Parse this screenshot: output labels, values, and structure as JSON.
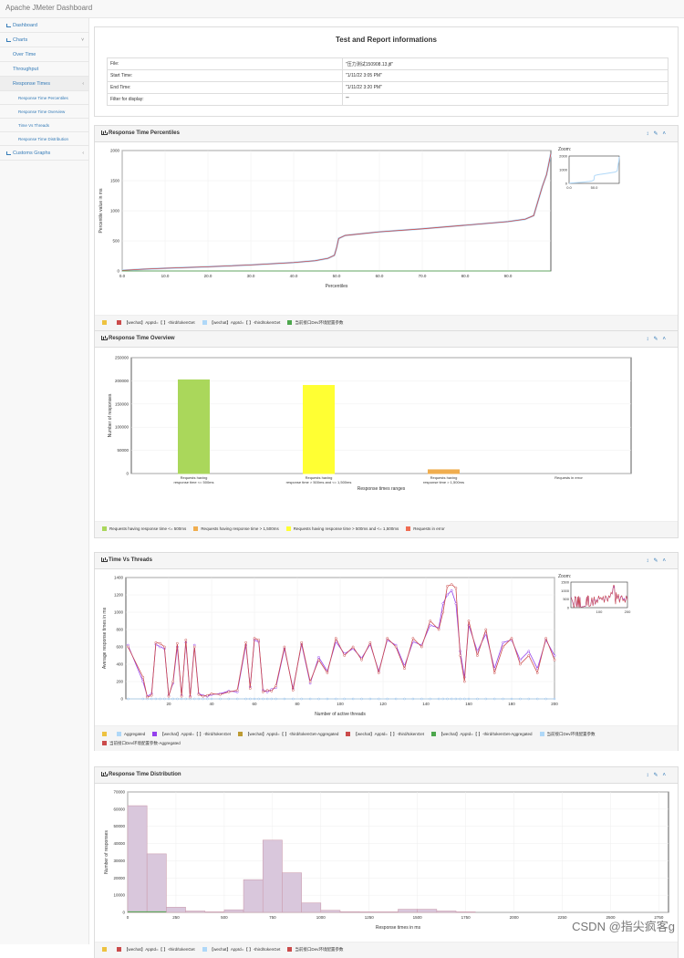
{
  "app": {
    "title": "Apache JMeter Dashboard"
  },
  "sidebar": {
    "items": [
      {
        "label": "Dashboard",
        "level": 0,
        "icon": "dashboard-icon"
      },
      {
        "label": "Charts",
        "level": 0,
        "icon": "chart-icon",
        "arrow": "˅"
      },
      {
        "label": "Over Time",
        "level": 1
      },
      {
        "label": "Throughput",
        "level": 1
      },
      {
        "label": "Response Times",
        "level": 1,
        "arrow": "‹",
        "active": true
      },
      {
        "label": "Response Time Percentiles",
        "level": 2
      },
      {
        "label": "Response Time Overview",
        "level": 2
      },
      {
        "label": "Time Vs Threads",
        "level": 2
      },
      {
        "label": "Response Time Distribution",
        "level": 2
      },
      {
        "label": "Customs Graphs",
        "level": 0,
        "icon": "chart-icon",
        "arrow": "‹"
      }
    ]
  },
  "info": {
    "title": "Test and Report informations",
    "rows": [
      {
        "k": "File:",
        "v": "\"压力测试150908.13.jtl\""
      },
      {
        "k": "Start Time:",
        "v": "\"1/11/22 3:05 PM\""
      },
      {
        "k": "End Time:",
        "v": "\"1/11/22 3:20 PM\""
      },
      {
        "k": "Filter for display:",
        "v": "\"\""
      }
    ]
  },
  "panels": {
    "percentiles": {
      "title": "Response Time Percentiles",
      "zoom": "Zoom:"
    },
    "overview": {
      "title": "Response Time Overview"
    },
    "threads": {
      "title": "Time Vs Threads",
      "zoom": "Zoom:"
    },
    "distribution": {
      "title": "Response Time Distribution"
    }
  },
  "colors": {
    "series_red": "#cb4b4b",
    "series_blue": "#afd8f8",
    "series_green": "#4da74d",
    "series_orange": "#edc240",
    "series_purple": "#9440ed",
    "panel_header": "#f5f5f5"
  },
  "chart_data": [
    {
      "type": "line",
      "xlabel": "Percentiles",
      "ylabel": "Percentile value in ms",
      "xlim": [
        0,
        100
      ],
      "ylim": [
        0,
        2000
      ],
      "xticks": [
        "0.0",
        "10.0",
        "20.0",
        "30.0",
        "40.0",
        "50.0",
        "60.0",
        "70.0",
        "80.0",
        "90.0"
      ],
      "yticks": [
        "0",
        "500",
        "1000",
        "1500",
        "2000"
      ],
      "zoom_xticks": [
        "0.0",
        "50.0"
      ],
      "zoom_yticks": [
        "0",
        "1000",
        "2000"
      ],
      "x": [
        0,
        5,
        10,
        20,
        30,
        40,
        45,
        48,
        49.5,
        50,
        50.5,
        52,
        60,
        70,
        80,
        90,
        94,
        96,
        98,
        99,
        100
      ],
      "series": [
        {
          "name": "【wechat】AppId=【 】-third/tokenGet",
          "values": [
            10,
            30,
            45,
            70,
            100,
            140,
            170,
            210,
            260,
            380,
            540,
            590,
            650,
            700,
            760,
            820,
            860,
            920,
            1400,
            1600,
            1950
          ]
        },
        {
          "name": "【wechat】AppId=【 】-third/tokenGet",
          "values": [
            10,
            30,
            45,
            70,
            100,
            140,
            170,
            210,
            260,
            380,
            540,
            590,
            650,
            700,
            760,
            820,
            860,
            920,
            1400,
            1600,
            1950
          ]
        },
        {
          "name": "当前接口Dev环境配置参数",
          "values": [
            0,
            0,
            0,
            0,
            0,
            0,
            0,
            0,
            0,
            0,
            0,
            0,
            0,
            0,
            0,
            0,
            0,
            0,
            0,
            0,
            0
          ]
        }
      ]
    },
    {
      "type": "bar",
      "xlabel": "Response times ranges",
      "ylabel": "Number of responses",
      "ylim": [
        0,
        250000
      ],
      "yticks": [
        "0",
        "50000",
        "100000",
        "150000",
        "200000",
        "250000"
      ],
      "categories": [
        {
          "line1": "Requests having",
          "line2": "response time <= 500ms"
        },
        {
          "line1": "Requests having",
          "line2": "response time > 500ms and <= 1,500ms"
        },
        {
          "line1": "Requests having",
          "line2": "response time > 1,500ms"
        },
        {
          "line1": "Requests in error",
          "line2": ""
        }
      ],
      "values": [
        202000,
        190000,
        8000,
        0
      ],
      "bar_colors": [
        "#aad75b",
        "#ffff33",
        "#f0ad4e",
        "#ef6c52"
      ],
      "legend": [
        {
          "name": "Requests having response time <= 500ms",
          "color": "#aad75b"
        },
        {
          "name": "Requests having response time > 1,500ms",
          "color": "#f0ad4e"
        },
        {
          "name": "Requests having response time > 500ms and <= 1,500ms",
          "color": "#ffff33"
        },
        {
          "name": "Requests in error",
          "color": "#ef6c52"
        }
      ]
    },
    {
      "type": "line",
      "xlabel": "Number of active threads",
      "ylabel": "Average response times in ms",
      "xlim": [
        0,
        200
      ],
      "ylim": [
        0,
        1400
      ],
      "xticks": [
        "20",
        "40",
        "60",
        "80",
        "100",
        "120",
        "140",
        "160",
        "180",
        "200"
      ],
      "yticks": [
        "0",
        "200",
        "400",
        "600",
        "800",
        "1000",
        "1200",
        "1400"
      ],
      "zoom_xticks": [
        "100",
        "200"
      ],
      "zoom_yticks": [
        "0",
        "500",
        "1000",
        "1500"
      ],
      "x": [
        1,
        8,
        10,
        12,
        14,
        16,
        18,
        20,
        22,
        24,
        26,
        28,
        30,
        32,
        34,
        36,
        38,
        40,
        44,
        48,
        52,
        56,
        58,
        60,
        62,
        64,
        66,
        68,
        70,
        74,
        78,
        82,
        86,
        90,
        94,
        98,
        102,
        106,
        110,
        114,
        118,
        122,
        126,
        130,
        134,
        138,
        142,
        146,
        148,
        150,
        152,
        154,
        156,
        158,
        160,
        164,
        168,
        172,
        176,
        180,
        184,
        188,
        192,
        196,
        200
      ],
      "series": [
        {
          "name": "【wechat】AppId=【 】-third/tokenGet",
          "values": [
            600,
            250,
            20,
            40,
            650,
            640,
            600,
            30,
            200,
            640,
            30,
            680,
            20,
            600,
            50,
            30,
            40,
            60,
            50,
            80,
            100,
            650,
            120,
            700,
            680,
            80,
            100,
            90,
            150,
            600,
            100,
            650,
            200,
            450,
            300,
            700,
            500,
            600,
            450,
            650,
            300,
            700,
            600,
            350,
            700,
            600,
            900,
            800,
            1000,
            1300,
            1320,
            1280,
            500,
            200,
            900,
            500,
            800,
            300,
            600,
            700,
            400,
            500,
            300,
            700,
            450
          ]
        },
        {
          "name": "Aggregated",
          "values": [
            600,
            250,
            20,
            40,
            650,
            640,
            600,
            30,
            200,
            640,
            30,
            680,
            20,
            600,
            50,
            30,
            40,
            60,
            50,
            80,
            100,
            650,
            120,
            700,
            680,
            80,
            100,
            90,
            150,
            600,
            100,
            650,
            200,
            450,
            300,
            700,
            500,
            600,
            450,
            650,
            300,
            700,
            600,
            350,
            700,
            600,
            900,
            800,
            1000,
            1300,
            1320,
            1280,
            500,
            200,
            900,
            500,
            800,
            300,
            600,
            700,
            400,
            500,
            300,
            700,
            450
          ]
        },
        {
          "name": "【wechat】AppId=【 】-third/tokenGet",
          "values": [
            620,
            200,
            30,
            60,
            630,
            600,
            580,
            40,
            180,
            600,
            40,
            650,
            30,
            620,
            60,
            40,
            30,
            50,
            60,
            90,
            80,
            620,
            140,
            680,
            660,
            100,
            80,
            110,
            130,
            580,
            120,
            630,
            180,
            480,
            320,
            660,
            520,
            580,
            470,
            630,
            320,
            680,
            620,
            380,
            660,
            620,
            850,
            820,
            1100,
            1200,
            1250,
            1100,
            550,
            250,
            850,
            550,
            750,
            350,
            650,
            680,
            450,
            550,
            350,
            680,
            500
          ]
        },
        {
          "name": "当前接口Dev环境配置参数",
          "values": [
            0,
            0,
            0,
            0,
            0,
            0,
            0,
            0,
            0,
            0,
            0,
            0,
            0,
            0,
            0,
            0,
            0,
            0,
            0,
            0,
            0,
            0,
            0,
            0,
            0,
            0,
            0,
            0,
            0,
            0,
            0,
            0,
            0,
            0,
            0,
            0,
            0,
            0,
            0,
            0,
            0,
            0,
            0,
            0,
            0,
            0,
            0,
            0,
            0,
            0,
            0,
            0,
            0,
            0,
            0,
            0,
            0,
            0,
            0,
            0,
            0,
            0,
            0,
            0,
            0
          ]
        }
      ],
      "legend": [
        {
          "name": "",
          "color": "#edc240"
        },
        {
          "name": "Aggregated",
          "color": "#afd8f8"
        },
        {
          "name": "【wechat】AppId=【 】-third/tokenGet",
          "color": "#9440ed"
        },
        {
          "name": "【wechat】AppId=【 】-third/tokenGet-Aggregated",
          "color": "#bd9b33"
        },
        {
          "name": "【wechat】AppId=【 】-third/tokenGet",
          "color": "#cb4b4b"
        },
        {
          "name": "【wechat】AppId=【 】-third/tokenGet-Aggregated",
          "color": "#4da74d"
        },
        {
          "name": "当前接口Dev环境配置参数",
          "color": "#afd8f8"
        },
        {
          "name": "当前接口Dev环境配置参数-Aggregated",
          "color": "#cb4b4b"
        }
      ]
    },
    {
      "type": "bar",
      "xlabel": "Response times in ms",
      "ylabel": "Number of responses",
      "xlim": [
        0,
        2800
      ],
      "ylim": [
        0,
        70000
      ],
      "xticks": [
        "0",
        "250",
        "500",
        "750",
        "1000",
        "1250",
        "1500",
        "1750",
        "2000",
        "2250",
        "2500",
        "2750"
      ],
      "yticks": [
        "0",
        "10000",
        "20000",
        "30000",
        "40000",
        "50000",
        "60000",
        "70000"
      ],
      "bin_width": 100,
      "bins": [
        0,
        100,
        200,
        300,
        400,
        500,
        600,
        700,
        800,
        900,
        1000,
        1100,
        1200,
        1300,
        1400,
        1500,
        1600,
        1700
      ],
      "values": [
        62000,
        34000,
        3000,
        800,
        300,
        1500,
        19000,
        42000,
        23000,
        5500,
        1200,
        400,
        300,
        300,
        1800,
        1800,
        800,
        300
      ]
    }
  ],
  "legends": {
    "percentiles": [
      {
        "name": "",
        "color": "#edc240"
      },
      {
        "name": "【wechat】AppId=【 】-third/tokenGet",
        "color": "#cb4b4b"
      },
      {
        "name": "【wechat】AppId=【 】-third/tokenGet",
        "color": "#afd8f8"
      },
      {
        "name": "当前接口Dev环境配置参数",
        "color": "#4da74d"
      }
    ],
    "distribution": [
      {
        "name": "",
        "color": "#edc240"
      },
      {
        "name": "【wechat】AppId=【 】-third/tokenGet",
        "color": "#cb4b4b"
      },
      {
        "name": "【wechat】AppId=【 】-third/tokenGet",
        "color": "#afd8f8"
      },
      {
        "name": "当前接口Dev环境配置参数",
        "color": "#cb4b4b"
      }
    ]
  },
  "watermark": "CSDN @指尖疯客g"
}
